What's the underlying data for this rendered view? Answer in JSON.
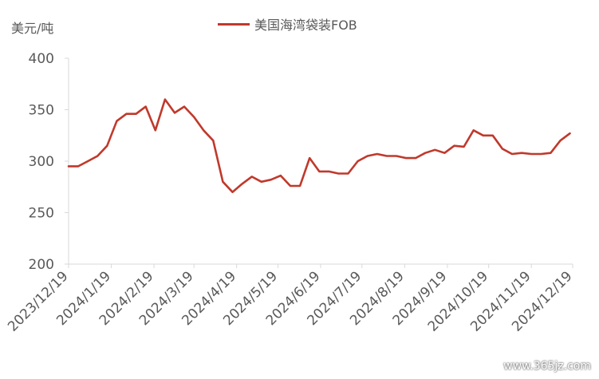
{
  "chart_data": {
    "type": "line",
    "ylabel": "美元/吨",
    "ylim": [
      200,
      400
    ],
    "yticks": [
      200,
      250,
      300,
      350,
      400
    ],
    "xticks": [
      "2023/12/19",
      "2024/1/19",
      "2024/2/19",
      "2024/3/19",
      "2024/4/19",
      "2024/5/19",
      "2024/6/19",
      "2024/7/19",
      "2024/8/19",
      "2024/9/19",
      "2024/10/19",
      "2024/11/19",
      "2024/12/19"
    ],
    "legend_position": "top",
    "grid": false,
    "colors": {
      "series": "#c0392b",
      "axis": "#d9d9d9",
      "text": "#595959"
    },
    "series": [
      {
        "name": "美国海湾袋装FOB",
        "x": [
          "2023-12-19",
          "2023-12-26",
          "2024-01-02",
          "2024-01-09",
          "2024-01-16",
          "2024-01-23",
          "2024-01-30",
          "2024-02-06",
          "2024-02-13",
          "2024-02-20",
          "2024-02-27",
          "2024-03-05",
          "2024-03-12",
          "2024-03-19",
          "2024-03-26",
          "2024-04-02",
          "2024-04-09",
          "2024-04-16",
          "2024-04-23",
          "2024-04-30",
          "2024-05-07",
          "2024-05-14",
          "2024-05-21",
          "2024-05-28",
          "2024-06-04",
          "2024-06-11",
          "2024-06-18",
          "2024-06-25",
          "2024-07-02",
          "2024-07-09",
          "2024-07-16",
          "2024-07-23",
          "2024-07-30",
          "2024-08-06",
          "2024-08-13",
          "2024-08-20",
          "2024-08-27",
          "2024-09-03",
          "2024-09-10",
          "2024-09-17",
          "2024-09-24",
          "2024-10-01",
          "2024-10-08",
          "2024-10-15",
          "2024-10-22",
          "2024-10-29",
          "2024-11-05",
          "2024-11-12",
          "2024-11-19",
          "2024-11-26",
          "2024-12-03",
          "2024-12-10",
          "2024-12-17"
        ],
        "values": [
          295,
          295,
          300,
          305,
          315,
          339,
          346,
          346,
          353,
          330,
          360,
          347,
          353,
          343,
          330,
          320,
          280,
          270,
          278,
          285,
          280,
          282,
          286,
          276,
          276,
          303,
          290,
          290,
          288,
          288,
          300,
          305,
          307,
          305,
          305,
          303,
          303,
          308,
          311,
          308,
          315,
          314,
          330,
          325,
          325,
          312,
          307,
          308,
          307,
          307,
          308,
          320,
          327
        ]
      }
    ]
  },
  "watermark": "www.365jz.com"
}
